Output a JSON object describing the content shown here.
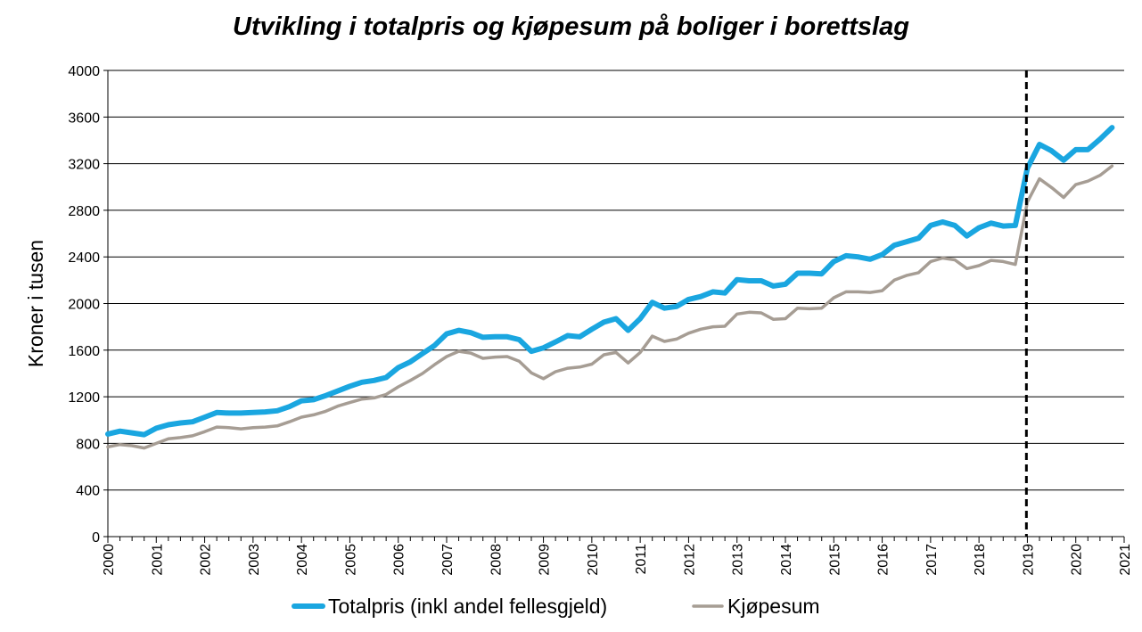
{
  "chart_data": {
    "type": "line",
    "title": "Utvikling i totalpris og kjøpesum på boliger i borettslag",
    "ylabel": "Kroner i tusen",
    "xlabel": "",
    "ylim": [
      0,
      4000
    ],
    "y_ticks": [
      0,
      400,
      800,
      1200,
      1600,
      2000,
      2400,
      2800,
      3200,
      3600,
      4000
    ],
    "x_ticks": [
      "2000",
      "2001",
      "2002",
      "2003",
      "2004",
      "2005",
      "2006",
      "2007",
      "2008",
      "2009",
      "2010",
      "2011",
      "2012",
      "2013",
      "2014",
      "2015",
      "2016",
      "2017",
      "2018",
      "2019",
      "2020",
      "2021"
    ],
    "x_range": [
      2000,
      2021
    ],
    "grid": "horizontal",
    "legend_position": "bottom",
    "reference_line": {
      "x": 2018.98,
      "style": "dashed"
    },
    "series": [
      {
        "name": "Totalpris (inkl andel fellesgjeld)",
        "color": "#1aa6e0",
        "points": [
          [
            2000.0,
            880
          ],
          [
            2000.25,
            905
          ],
          [
            2000.5,
            890
          ],
          [
            2000.75,
            875
          ],
          [
            2001.0,
            930
          ],
          [
            2001.25,
            960
          ],
          [
            2001.5,
            975
          ],
          [
            2001.75,
            985
          ],
          [
            2002.0,
            1025
          ],
          [
            2002.25,
            1065
          ],
          [
            2002.5,
            1060
          ],
          [
            2002.75,
            1060
          ],
          [
            2003.0,
            1065
          ],
          [
            2003.25,
            1070
          ],
          [
            2003.5,
            1080
          ],
          [
            2003.75,
            1115
          ],
          [
            2004.0,
            1165
          ],
          [
            2004.25,
            1175
          ],
          [
            2004.5,
            1210
          ],
          [
            2004.75,
            1250
          ],
          [
            2005.0,
            1290
          ],
          [
            2005.25,
            1325
          ],
          [
            2005.5,
            1340
          ],
          [
            2005.75,
            1365
          ],
          [
            2006.0,
            1450
          ],
          [
            2006.25,
            1500
          ],
          [
            2006.5,
            1570
          ],
          [
            2006.75,
            1640
          ],
          [
            2007.0,
            1740
          ],
          [
            2007.25,
            1770
          ],
          [
            2007.5,
            1750
          ],
          [
            2007.75,
            1710
          ],
          [
            2008.0,
            1715
          ],
          [
            2008.25,
            1715
          ],
          [
            2008.5,
            1690
          ],
          [
            2008.75,
            1590
          ],
          [
            2009.0,
            1620
          ],
          [
            2009.25,
            1670
          ],
          [
            2009.5,
            1725
          ],
          [
            2009.75,
            1715
          ],
          [
            2010.0,
            1780
          ],
          [
            2010.25,
            1840
          ],
          [
            2010.5,
            1870
          ],
          [
            2010.75,
            1770
          ],
          [
            2011.0,
            1870
          ],
          [
            2011.25,
            2010
          ],
          [
            2011.5,
            1960
          ],
          [
            2011.75,
            1975
          ],
          [
            2012.0,
            2035
          ],
          [
            2012.25,
            2060
          ],
          [
            2012.5,
            2100
          ],
          [
            2012.75,
            2090
          ],
          [
            2013.0,
            2205
          ],
          [
            2013.25,
            2195
          ],
          [
            2013.5,
            2195
          ],
          [
            2013.75,
            2150
          ],
          [
            2014.0,
            2165
          ],
          [
            2014.25,
            2260
          ],
          [
            2014.5,
            2260
          ],
          [
            2014.75,
            2255
          ],
          [
            2015.0,
            2360
          ],
          [
            2015.25,
            2410
          ],
          [
            2015.5,
            2400
          ],
          [
            2015.75,
            2380
          ],
          [
            2016.0,
            2420
          ],
          [
            2016.25,
            2500
          ],
          [
            2016.5,
            2530
          ],
          [
            2016.75,
            2560
          ],
          [
            2017.0,
            2670
          ],
          [
            2017.25,
            2700
          ],
          [
            2017.5,
            2670
          ],
          [
            2017.75,
            2580
          ],
          [
            2018.0,
            2650
          ],
          [
            2018.25,
            2690
          ],
          [
            2018.5,
            2665
          ],
          [
            2018.75,
            2670
          ],
          [
            2019.0,
            3160
          ],
          [
            2019.25,
            3365
          ],
          [
            2019.5,
            3310
          ],
          [
            2019.75,
            3230
          ],
          [
            2020.0,
            3320
          ],
          [
            2020.25,
            3320
          ],
          [
            2020.5,
            3410
          ],
          [
            2020.75,
            3510
          ]
        ]
      },
      {
        "name": "Kjøpesum",
        "color": "#a69d94",
        "points": [
          [
            2000.0,
            770
          ],
          [
            2000.25,
            790
          ],
          [
            2000.5,
            780
          ],
          [
            2000.75,
            760
          ],
          [
            2001.0,
            800
          ],
          [
            2001.25,
            840
          ],
          [
            2001.5,
            850
          ],
          [
            2001.75,
            865
          ],
          [
            2002.0,
            900
          ],
          [
            2002.25,
            940
          ],
          [
            2002.5,
            935
          ],
          [
            2002.75,
            925
          ],
          [
            2003.0,
            935
          ],
          [
            2003.25,
            940
          ],
          [
            2003.5,
            950
          ],
          [
            2003.75,
            985
          ],
          [
            2004.0,
            1025
          ],
          [
            2004.25,
            1045
          ],
          [
            2004.5,
            1075
          ],
          [
            2004.75,
            1120
          ],
          [
            2005.0,
            1150
          ],
          [
            2005.25,
            1180
          ],
          [
            2005.5,
            1190
          ],
          [
            2005.75,
            1220
          ],
          [
            2006.0,
            1285
          ],
          [
            2006.25,
            1340
          ],
          [
            2006.5,
            1400
          ],
          [
            2006.75,
            1475
          ],
          [
            2007.0,
            1545
          ],
          [
            2007.25,
            1590
          ],
          [
            2007.5,
            1575
          ],
          [
            2007.75,
            1530
          ],
          [
            2008.0,
            1540
          ],
          [
            2008.25,
            1545
          ],
          [
            2008.5,
            1505
          ],
          [
            2008.75,
            1405
          ],
          [
            2009.0,
            1355
          ],
          [
            2009.25,
            1415
          ],
          [
            2009.5,
            1445
          ],
          [
            2009.75,
            1455
          ],
          [
            2010.0,
            1480
          ],
          [
            2010.25,
            1560
          ],
          [
            2010.5,
            1580
          ],
          [
            2010.75,
            1490
          ],
          [
            2011.0,
            1580
          ],
          [
            2011.25,
            1720
          ],
          [
            2011.5,
            1675
          ],
          [
            2011.75,
            1695
          ],
          [
            2012.0,
            1745
          ],
          [
            2012.25,
            1780
          ],
          [
            2012.5,
            1800
          ],
          [
            2012.75,
            1805
          ],
          [
            2013.0,
            1910
          ],
          [
            2013.25,
            1925
          ],
          [
            2013.5,
            1920
          ],
          [
            2013.75,
            1865
          ],
          [
            2014.0,
            1870
          ],
          [
            2014.25,
            1960
          ],
          [
            2014.5,
            1955
          ],
          [
            2014.75,
            1960
          ],
          [
            2015.0,
            2050
          ],
          [
            2015.25,
            2100
          ],
          [
            2015.5,
            2100
          ],
          [
            2015.75,
            2095
          ],
          [
            2016.0,
            2110
          ],
          [
            2016.25,
            2200
          ],
          [
            2016.5,
            2240
          ],
          [
            2016.75,
            2265
          ],
          [
            2017.0,
            2360
          ],
          [
            2017.25,
            2390
          ],
          [
            2017.5,
            2375
          ],
          [
            2017.75,
            2300
          ],
          [
            2018.0,
            2325
          ],
          [
            2018.25,
            2370
          ],
          [
            2018.5,
            2360
          ],
          [
            2018.75,
            2335
          ],
          [
            2019.0,
            2870
          ],
          [
            2019.25,
            3070
          ],
          [
            2019.5,
            2995
          ],
          [
            2019.75,
            2910
          ],
          [
            2020.0,
            3020
          ],
          [
            2020.25,
            3050
          ],
          [
            2020.5,
            3100
          ],
          [
            2020.75,
            3180
          ]
        ]
      }
    ]
  }
}
